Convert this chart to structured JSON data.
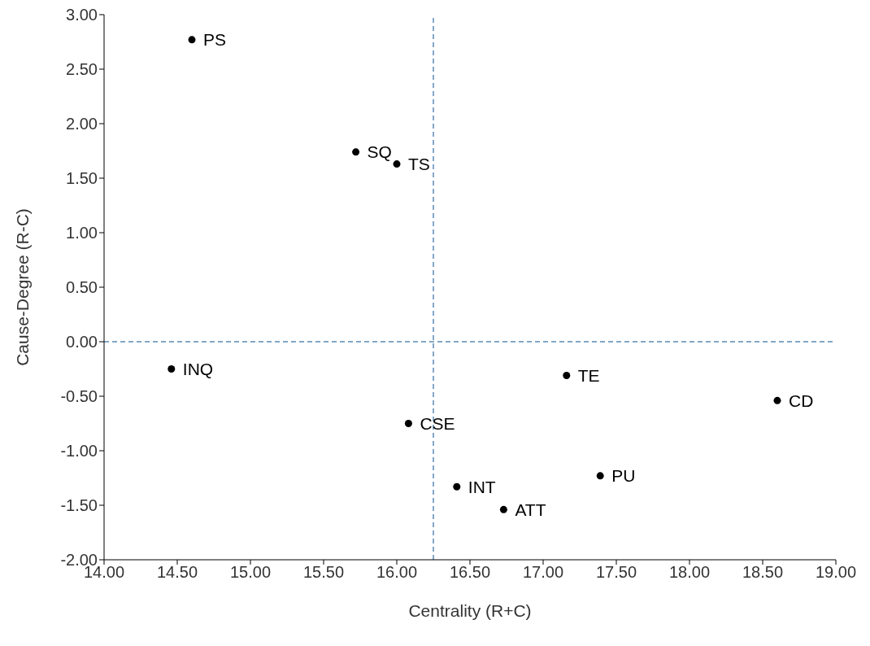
{
  "chart_data": {
    "type": "scatter",
    "xlabel": "Centrality (R+C)",
    "ylabel": "Cause-Degree (R-C)",
    "x": [
      14.6,
      15.72,
      16.0,
      14.46,
      16.08,
      17.16,
      18.6,
      16.41,
      17.39,
      16.73
    ],
    "values": [
      2.77,
      1.74,
      1.63,
      -0.25,
      -0.75,
      -0.31,
      -0.54,
      -1.33,
      -1.23,
      -1.54
    ],
    "color": "#000000",
    "marker": "circle",
    "xlim": [
      14,
      19
    ],
    "xticks": [
      {
        "value": 14,
        "label": "14.00"
      },
      {
        "value": 14.5,
        "label": "14.50"
      },
      {
        "value": 15,
        "label": "15.00"
      },
      {
        "value": 15.5,
        "label": "15.50"
      },
      {
        "value": 16,
        "label": "16.00"
      },
      {
        "value": 16.5,
        "label": "16.50"
      },
      {
        "value": 17,
        "label": "17.00"
      },
      {
        "value": 17.5,
        "label": "17.50"
      },
      {
        "value": 18,
        "label": "18.00"
      },
      {
        "value": 18.5,
        "label": "18.50"
      },
      {
        "value": 19,
        "label": "19.00"
      }
    ],
    "ylim": [
      -2,
      3
    ],
    "yticks": [
      {
        "value": -2,
        "label": "-2.00"
      },
      {
        "value": -1.5,
        "label": "-1.50"
      },
      {
        "value": -1,
        "label": "-1.00"
      },
      {
        "value": -0.5,
        "label": "-0.50"
      },
      {
        "value": 0,
        "label": "0.00"
      },
      {
        "value": 0.5,
        "label": "0.50"
      },
      {
        "value": 1,
        "label": "1.00"
      },
      {
        "value": 1.5,
        "label": "1.50"
      },
      {
        "value": 2,
        "label": "2.00"
      },
      {
        "value": 2.5,
        "label": "2.50"
      },
      {
        "value": 3,
        "label": "3.00"
      }
    ],
    "ref_lines": [
      {
        "axis": "x",
        "value": 16.25,
        "color": "#5b8ab5",
        "line_style": "dashed"
      },
      {
        "axis": "y",
        "value": 0,
        "color": "#5b8ab5",
        "line_style": "dashed"
      }
    ],
    "annotations": [
      {
        "text": "PS",
        "x": 14.6,
        "y": 2.77
      },
      {
        "text": "SQ",
        "x": 15.72,
        "y": 1.74
      },
      {
        "text": "TS",
        "x": 16.0,
        "y": 1.63
      },
      {
        "text": "INQ",
        "x": 14.46,
        "y": -0.25
      },
      {
        "text": "CSE",
        "x": 16.08,
        "y": -0.75
      },
      {
        "text": "TE",
        "x": 17.16,
        "y": -0.31
      },
      {
        "text": "CD",
        "x": 18.6,
        "y": -0.54
      },
      {
        "text": "INT",
        "x": 16.41,
        "y": -1.33
      },
      {
        "text": "PU",
        "x": 17.39,
        "y": -1.23
      },
      {
        "text": "ATT",
        "x": 16.73,
        "y": -1.54
      }
    ],
    "grid": false,
    "legend": false
  }
}
